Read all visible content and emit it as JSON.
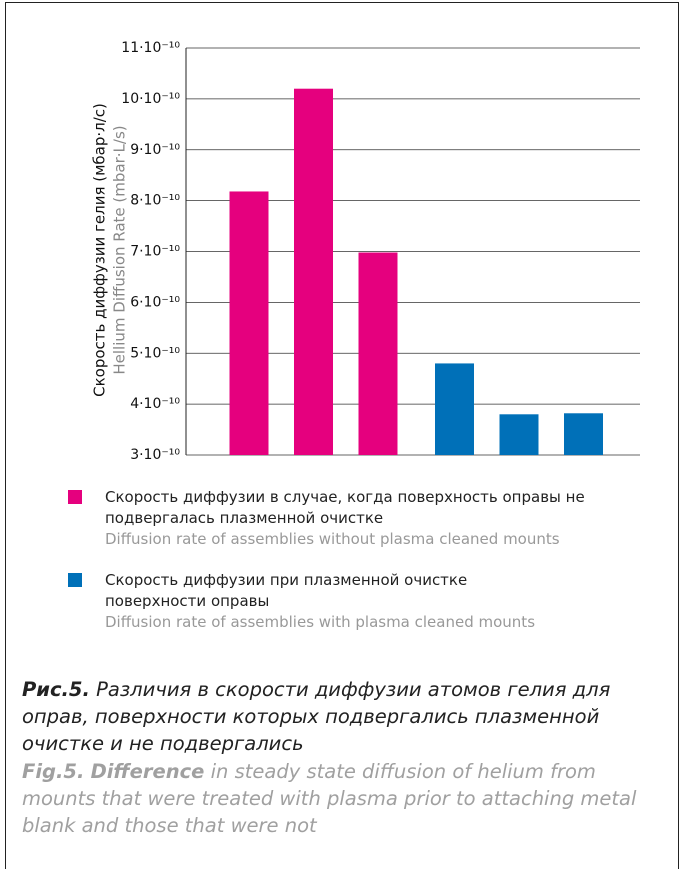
{
  "chart_data": {
    "type": "bar",
    "y_label": "Скорость диффузии гелия (мбар·л/с)",
    "y_label_en": "Hellium Diffusion Rate (mbar·L/s)",
    "categories": [
      null,
      null,
      null,
      null,
      null,
      null
    ],
    "series": [
      {
        "name": "Скорость диффузии в случае, когда поверхность оправы не подвергалась плазменной очистке",
        "name_en": "Diffusion rate of assemblies without plasma cleaned mounts",
        "color": "#e5007e",
        "values": [
          8.18e-10,
          1.02e-09,
          6.98e-10,
          null,
          null,
          null
        ]
      },
      {
        "name": "Скорость диффузии при плазменной очистке поверхности оправы",
        "name_en": "Diffusion rate of assemblies with plasma cleaned mounts",
        "color": "#0070b8",
        "values": [
          null,
          null,
          null,
          4.8e-10,
          3.8e-10,
          3.82e-10
        ]
      }
    ],
    "ylim": [
      3e-10,
      1.1e-09
    ],
    "yticks": [
      {
        "value": 3e-10,
        "label": "3·10⁻¹⁰"
      },
      {
        "value": 4e-10,
        "label": "4·10⁻¹⁰"
      },
      {
        "value": 5e-10,
        "label": "5·10⁻¹⁰"
      },
      {
        "value": 6e-10,
        "label": "6·10⁻¹⁰"
      },
      {
        "value": 7e-10,
        "label": "7·10⁻¹⁰"
      },
      {
        "value": 8e-10,
        "label": "8·10⁻¹⁰"
      },
      {
        "value": 9e-10,
        "label": "9·10⁻¹⁰"
      },
      {
        "value": 1e-09,
        "label": "10·10⁻¹⁰"
      },
      {
        "value": 1.1e-09,
        "label": "11·10⁻¹⁰"
      }
    ],
    "grid": true,
    "caption": {
      "label": "Рис.5.",
      "text": "Различия в скорости диффузии атомов гелия для оправ, поверхности которых подвергались плазменной очистке и не подвергались"
    },
    "caption_en": {
      "label": "Fig.5.",
      "emphasis": "Difference",
      "text": "in steady state diffusion of helium from mounts that were treated with plasma prior to attaching metal blank and those that were not"
    }
  }
}
